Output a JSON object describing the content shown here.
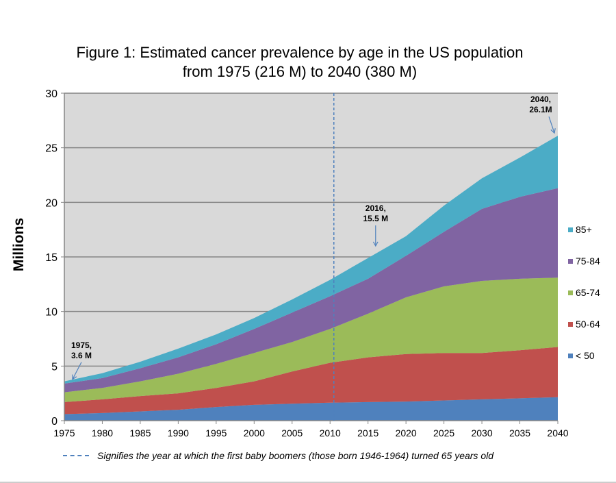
{
  "chart_data": {
    "type": "area",
    "stacked": true,
    "title": "Figure 1: Estimated cancer prevalence by age in the US population",
    "subtitle": "from 1975 (216 M) to 2040 (380 M)",
    "xlabel": "",
    "ylabel": "Millions",
    "ylim": [
      0,
      30
    ],
    "yticks": [
      0,
      5,
      10,
      15,
      20,
      25,
      30
    ],
    "xlim": [
      1975,
      2040
    ],
    "xticks": [
      1975,
      1980,
      1985,
      1990,
      1995,
      2000,
      2005,
      2010,
      2015,
      2020,
      2025,
      2030,
      2035,
      2040
    ],
    "grid": true,
    "legend_position": "right",
    "x": [
      1975,
      1980,
      1985,
      1990,
      1995,
      2000,
      2005,
      2010,
      2015,
      2020,
      2025,
      2030,
      2035,
      2040
    ],
    "series": [
      {
        "name": "< 50",
        "color": "#4f81bd",
        "values": [
          0.6,
          0.7,
          0.85,
          1.0,
          1.25,
          1.45,
          1.55,
          1.65,
          1.7,
          1.75,
          1.85,
          1.95,
          2.05,
          2.15
        ]
      },
      {
        "name": "50-64",
        "color": "#c0504d",
        "values": [
          1.1,
          1.25,
          1.4,
          1.5,
          1.75,
          2.15,
          2.95,
          3.65,
          4.1,
          4.35,
          4.35,
          4.25,
          4.4,
          4.6
        ]
      },
      {
        "name": "65-74",
        "color": "#9bbb59",
        "values": [
          0.9,
          1.05,
          1.35,
          1.8,
          2.2,
          2.6,
          2.7,
          3.1,
          4.0,
          5.2,
          6.1,
          6.6,
          6.55,
          6.35
        ]
      },
      {
        "name": "75-84",
        "color": "#8064a2",
        "values": [
          0.8,
          0.9,
          1.2,
          1.5,
          1.8,
          2.2,
          2.7,
          3.0,
          3.2,
          3.8,
          5.0,
          6.6,
          7.5,
          8.2
        ]
      },
      {
        "name": "85+",
        "color": "#4bacc6",
        "values": [
          0.2,
          0.45,
          0.6,
          0.8,
          0.9,
          1.0,
          1.2,
          1.5,
          1.9,
          1.8,
          2.4,
          2.8,
          3.6,
          4.8
        ]
      }
    ],
    "reference_line": {
      "x": 2010.5,
      "style": "dashed",
      "color": "#4f81bd"
    },
    "annotations": [
      {
        "line1": "1975,",
        "line2": "3.6 M",
        "x": 1975,
        "y": 3.6
      },
      {
        "line1": "2016,",
        "line2": "15.5 M",
        "x": 2016,
        "y": 15.5
      },
      {
        "line1": "2040,",
        "line2": "26.1M",
        "x": 2040,
        "y": 26.1
      }
    ],
    "footnote": "Signifies the year at which the first baby boomers (those born 1946-1964) turned 65 years old",
    "plot_background": "#d9d9d9"
  }
}
